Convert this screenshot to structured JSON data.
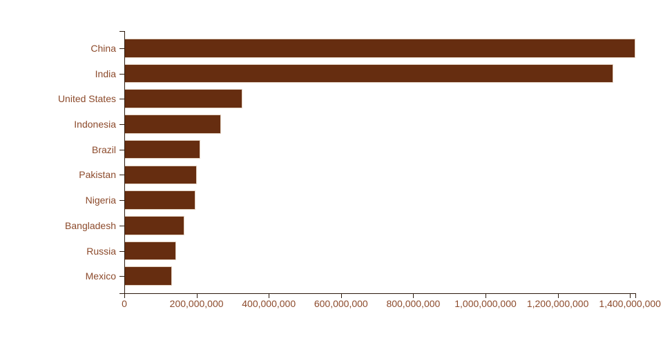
{
  "chart_data": {
    "type": "bar",
    "orientation": "horizontal",
    "title": "",
    "xlabel": "",
    "ylabel": "",
    "categories": [
      "China",
      "India",
      "United States",
      "Indonesia",
      "Brazil",
      "Pakistan",
      "Nigeria",
      "Bangladesh",
      "Russia",
      "Mexico"
    ],
    "values": [
      1415000000,
      1354000000,
      327000000,
      267000000,
      211000000,
      201000000,
      196000000,
      166000000,
      144000000,
      131000000
    ],
    "xlim": [
      0,
      1415000000
    ],
    "x_ticks": [
      0,
      200000000,
      400000000,
      600000000,
      800000000,
      1000000000,
      1200000000,
      1400000000
    ],
    "x_tick_labels": [
      "0",
      "200,000,000",
      "400,000,000",
      "600,000,000",
      "800,000,000",
      "1,000,000,000",
      "1,200,000,000",
      "1,400,000,000"
    ],
    "grid": false,
    "legend": false
  },
  "colors": {
    "background": "#FFFFFF",
    "bar_fill": "#662D10",
    "bar_stroke": "#E3D2C2",
    "axis_line": "#2B190C",
    "tick_text": "#8C4A2B"
  }
}
